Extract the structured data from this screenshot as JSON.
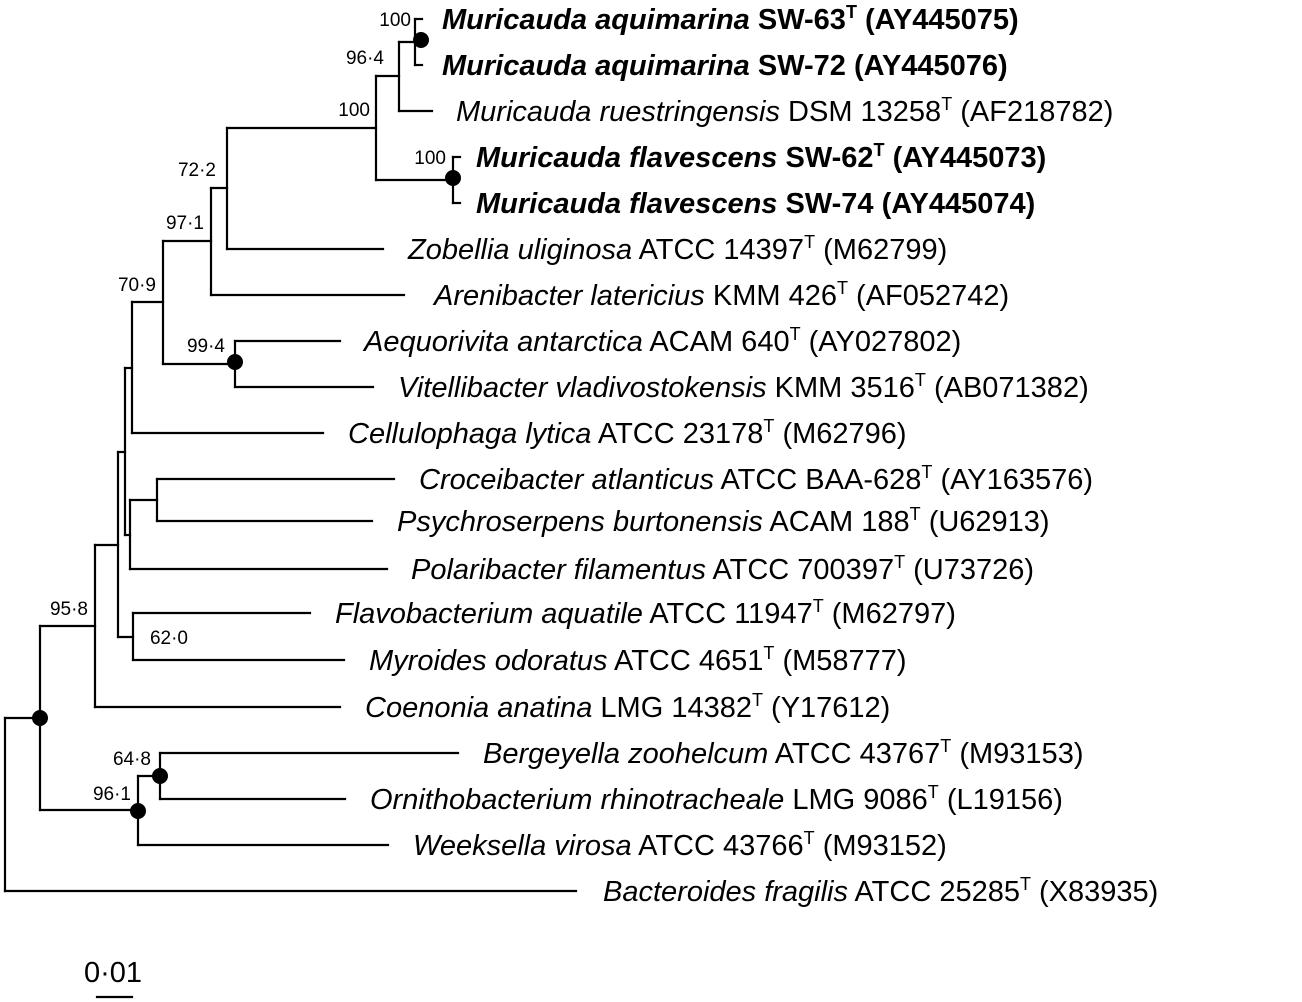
{
  "figure": {
    "title": "",
    "scale_label": "0·01",
    "scale_value": 0.01
  },
  "leaves": [
    {
      "id": "aquimarina_sw63",
      "name": "Muricauda aquimarina",
      "strain": "SW-63",
      "type_strain": true,
      "accession": "(AY445075)",
      "bold": true
    },
    {
      "id": "aquimarina_sw72",
      "name": "Muricauda aquimarina",
      "strain": "SW-72",
      "type_strain": false,
      "accession": "(AY445076)",
      "bold": true
    },
    {
      "id": "ruestringensis",
      "name": "Muricauda ruestringensis",
      "strain": "DSM 13258",
      "type_strain": true,
      "accession": "(AF218782)",
      "bold": false
    },
    {
      "id": "flavescens_sw62",
      "name": "Muricauda flavescens",
      "strain": "SW-62",
      "type_strain": true,
      "accession": "(AY445073)",
      "bold": true
    },
    {
      "id": "flavescens_sw74",
      "name": "Muricauda flavescens",
      "strain": "SW-74",
      "type_strain": false,
      "accession": "(AY445074)",
      "bold": true
    },
    {
      "id": "zobellia",
      "name": "Zobellia uliginosa",
      "strain": "ATCC 14397",
      "type_strain": true,
      "accession": "(M62799)",
      "bold": false
    },
    {
      "id": "arenibacter",
      "name": "Arenibacter latericius",
      "strain": "KMM 426",
      "type_strain": true,
      "accession": "(AF052742)",
      "bold": false
    },
    {
      "id": "aequorivita",
      "name": "Aequorivita antarctica",
      "strain": "ACAM 640",
      "type_strain": true,
      "accession": "(AY027802)",
      "bold": false
    },
    {
      "id": "vitellibacter",
      "name": "Vitellibacter vladivostokensis",
      "strain": "KMM 3516",
      "type_strain": true,
      "accession": "(AB071382)",
      "bold": false
    },
    {
      "id": "cellulophaga",
      "name": "Cellulophaga lytica",
      "strain": "ATCC 23178",
      "type_strain": true,
      "accession": "(M62796)",
      "bold": false
    },
    {
      "id": "croceibacter",
      "name": "Croceibacter atlanticus",
      "strain": "ATCC BAA-628",
      "type_strain": true,
      "accession": "(AY163576)",
      "bold": false
    },
    {
      "id": "psychroserpens",
      "name": "Psychroserpens burtonensis",
      "strain": "ACAM 188",
      "type_strain": true,
      "accession": "(U62913)",
      "bold": false
    },
    {
      "id": "polaribacter",
      "name": "Polaribacter filamentus",
      "strain": "ATCC 700397",
      "type_strain": true,
      "accession": "(U73726)",
      "bold": false
    },
    {
      "id": "flavobacterium",
      "name": "Flavobacterium aquatile",
      "strain": "ATCC 11947",
      "type_strain": true,
      "accession": "(M62797)",
      "bold": false
    },
    {
      "id": "myroides",
      "name": "Myroides odoratus",
      "strain": "ATCC 4651",
      "type_strain": true,
      "accession": "(M58777)",
      "bold": false
    },
    {
      "id": "coenonia",
      "name": "Coenonia anatina",
      "strain": "LMG 14382",
      "type_strain": true,
      "accession": "(Y17612)",
      "bold": false
    },
    {
      "id": "bergeyella",
      "name": "Bergeyella zoohelcum",
      "strain": "ATCC 43767",
      "type_strain": true,
      "accession": "(M93153)",
      "bold": false
    },
    {
      "id": "ornithobacterium",
      "name": "Ornithobacterium rhinotracheale",
      "strain": "LMG 9086",
      "type_strain": true,
      "accession": "(L19156)",
      "bold": false
    },
    {
      "id": "weeksella",
      "name": "Weeksella virosa",
      "strain": "ATCC 43766",
      "type_strain": true,
      "accession": "(M93152)",
      "bold": false
    },
    {
      "id": "bacteroides",
      "name": "Bacteroides fragilis",
      "strain": "ATCC 25285",
      "type_strain": true,
      "accession": "(X83935)",
      "bold": false
    }
  ],
  "bootstrap": {
    "aquimarina": "100",
    "aquimarina_ruestringensis": "96·4",
    "muricauda": "100",
    "flavescens": "100",
    "muricauda_zobellia": "72·2",
    "with_arenibacter": "97·1",
    "aequorivita_vitellibacter": "99·4",
    "with_aequorivita": "70·9",
    "flavobacterium_myroides": "62·0",
    "flavobacteriaceae": "95·8",
    "bergeyella_ornithobacterium": "64·8",
    "with_weeksella": "96·1"
  },
  "type_mark": "T"
}
